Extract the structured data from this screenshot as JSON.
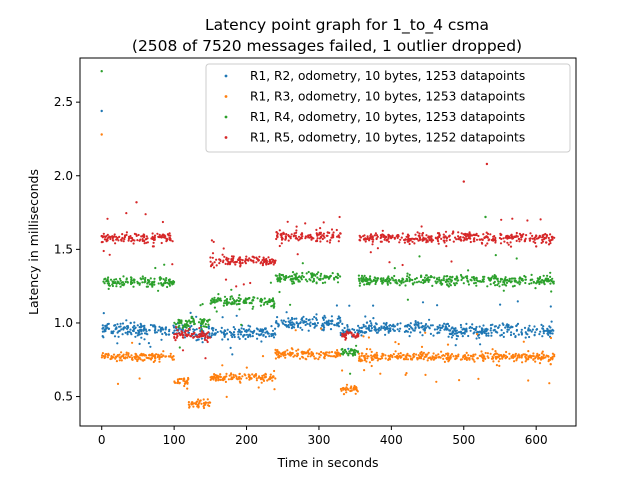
{
  "chart_data": {
    "type": "scatter",
    "title_line1": "Latency point graph for 1_to_4 csma",
    "title_line2": "(2508 of 7520 messages failed, 1 outlier dropped)",
    "xlabel": "Time in seconds",
    "ylabel": "Latency in milliseconds",
    "xlim": [
      -30,
      655
    ],
    "ylim": [
      0.3,
      2.8
    ],
    "xticks": [
      0,
      100,
      200,
      300,
      400,
      500,
      600
    ],
    "yticks": [
      0.5,
      1.0,
      1.5,
      2.0,
      2.5
    ],
    "xtick_labels": [
      "0",
      "100",
      "200",
      "300",
      "400",
      "500",
      "600"
    ],
    "ytick_labels": [
      "0.5",
      "1.0",
      "1.5",
      "2.0",
      "2.5"
    ],
    "grid": false,
    "legend_position": "top-right",
    "series": [
      {
        "name": "R1, R2, odometry, 10 bytes, 1253 datapoints",
        "color": "#1f77b4",
        "baseline": 0.96,
        "spread": 0.045,
        "segments": [
          [
            0,
            125,
            0.95
          ],
          [
            125,
            145,
            0.93
          ],
          [
            145,
            240,
            0.93
          ],
          [
            240,
            330,
            1.0
          ],
          [
            330,
            360,
            0.95
          ],
          [
            360,
            480,
            0.97
          ],
          [
            480,
            625,
            0.95
          ]
        ],
        "sample_points": [
          [
            0,
            2.44
          ],
          [
            5,
            0.98
          ],
          [
            40,
            1.0
          ],
          [
            100,
            0.97
          ],
          [
            130,
            0.92
          ],
          [
            200,
            0.94
          ],
          [
            280,
            1.01
          ],
          [
            345,
            0.93
          ],
          [
            420,
            0.98
          ],
          [
            500,
            0.96
          ],
          [
            560,
            0.99
          ],
          [
            620,
            0.93
          ]
        ]
      },
      {
        "name": "R1, R3, odometry, 10 bytes, 1253 datapoints",
        "color": "#ff7f0e",
        "baseline": 0.77,
        "spread": 0.03,
        "segments": [
          [
            0,
            100,
            0.77
          ],
          [
            100,
            120,
            0.6
          ],
          [
            120,
            150,
            0.45
          ],
          [
            150,
            240,
            0.63
          ],
          [
            240,
            330,
            0.79
          ],
          [
            330,
            355,
            0.55
          ],
          [
            355,
            625,
            0.77
          ]
        ],
        "sample_points": [
          [
            0,
            2.28
          ],
          [
            5,
            0.77
          ],
          [
            60,
            0.78
          ],
          [
            130,
            0.45
          ],
          [
            180,
            0.62
          ],
          [
            280,
            0.8
          ],
          [
            345,
            0.54
          ],
          [
            420,
            0.77
          ],
          [
            490,
            0.76
          ],
          [
            580,
            0.78
          ],
          [
            620,
            0.72
          ]
        ]
      },
      {
        "name": "R1, R4, odometry, 10 bytes, 1253 datapoints",
        "color": "#2ca02c",
        "baseline": 1.29,
        "spread": 0.035,
        "segments": [
          [
            0,
            100,
            1.28
          ],
          [
            100,
            150,
            1.0
          ],
          [
            150,
            240,
            1.15
          ],
          [
            240,
            330,
            1.31
          ],
          [
            330,
            355,
            0.8
          ],
          [
            355,
            625,
            1.29
          ]
        ],
        "sample_points": [
          [
            0,
            2.71
          ],
          [
            5,
            1.3
          ],
          [
            60,
            1.28
          ],
          [
            120,
            0.98
          ],
          [
            200,
            1.16
          ],
          [
            290,
            1.31
          ],
          [
            345,
            0.82
          ],
          [
            450,
            1.3
          ],
          [
            530,
            1.72
          ],
          [
            600,
            1.27
          ]
        ]
      },
      {
        "name": "R1, R5, odometry, 10 bytes, 1252 datapoints",
        "color": "#d62728",
        "baseline": 1.57,
        "spread": 0.035,
        "segments": [
          [
            0,
            100,
            1.58
          ],
          [
            100,
            150,
            0.92
          ],
          [
            150,
            240,
            1.42
          ],
          [
            240,
            330,
            1.59
          ],
          [
            330,
            355,
            0.92
          ],
          [
            355,
            625,
            1.58
          ]
        ],
        "sample_points": [
          [
            0,
            1.59
          ],
          [
            48,
            1.82
          ],
          [
            120,
            0.92
          ],
          [
            200,
            1.43
          ],
          [
            300,
            1.6
          ],
          [
            345,
            0.93
          ],
          [
            500,
            1.96
          ],
          [
            532,
            2.08
          ],
          [
            600,
            1.52
          ]
        ]
      }
    ]
  }
}
